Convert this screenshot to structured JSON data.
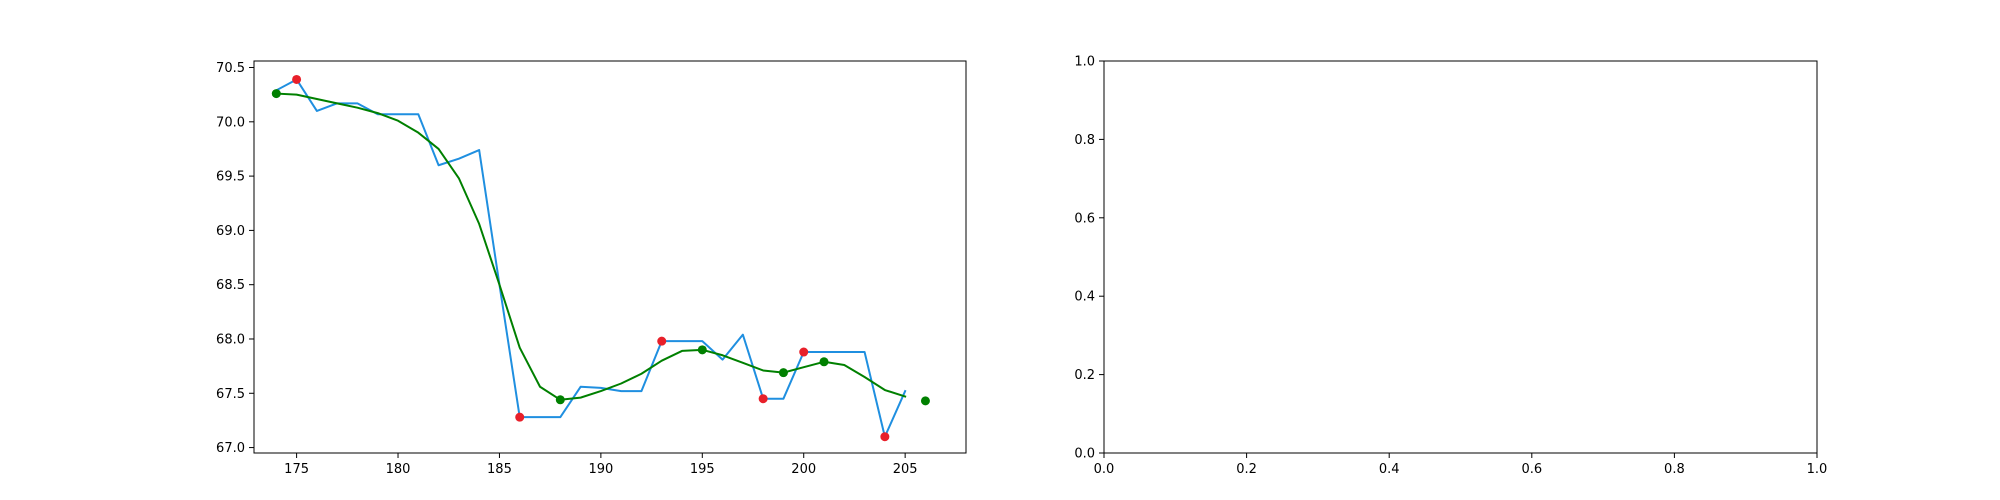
{
  "chart_data": [
    {
      "type": "line",
      "title": "",
      "xlabel": "",
      "ylabel": "",
      "xlim": [
        172.9,
        208.0
      ],
      "ylim": [
        66.95,
        70.56
      ],
      "grid": false,
      "legend": "none",
      "xticks": [
        175,
        180,
        185,
        190,
        195,
        200,
        205
      ],
      "yticks": [
        67.0,
        67.5,
        68.0,
        68.5,
        69.0,
        69.5,
        70.0,
        70.5
      ],
      "series": [
        {
          "kind": "line",
          "color": "#1f8fe0",
          "x": [
            174,
            175,
            176,
            177,
            178,
            179,
            180,
            181,
            182,
            183,
            184,
            185,
            186,
            187,
            188,
            189,
            190,
            191,
            192,
            193,
            194,
            195,
            196,
            197,
            198,
            199,
            200,
            201,
            202,
            203,
            204,
            205
          ],
          "y": [
            70.29,
            70.39,
            70.1,
            70.17,
            70.17,
            70.07,
            70.07,
            70.07,
            69.6,
            69.66,
            69.74,
            68.5,
            67.28,
            67.28,
            67.28,
            67.56,
            67.55,
            67.52,
            67.52,
            67.98,
            67.98,
            67.98,
            67.81,
            68.04,
            67.45,
            67.45,
            67.88,
            67.88,
            67.88,
            67.88,
            67.1,
            67.52
          ]
        },
        {
          "kind": "line",
          "color": "#008000",
          "x": [
            174,
            175,
            176,
            177,
            178,
            179,
            180,
            181,
            182,
            183,
            184,
            185,
            186,
            187,
            188,
            189,
            190,
            191,
            192,
            193,
            194,
            195,
            196,
            197,
            198,
            199,
            200,
            201,
            202,
            203,
            204,
            205
          ],
          "y": [
            70.26,
            70.25,
            70.21,
            70.17,
            70.13,
            70.08,
            70.01,
            69.9,
            69.75,
            69.48,
            69.06,
            68.5,
            67.92,
            67.56,
            67.44,
            67.46,
            67.52,
            67.59,
            67.68,
            67.8,
            67.89,
            67.9,
            67.85,
            67.78,
            67.71,
            67.69,
            67.74,
            67.79,
            67.76,
            67.65,
            67.53,
            67.47
          ]
        },
        {
          "kind": "scatter",
          "color": "#e8202a",
          "x": [
            175,
            186,
            193,
            198,
            200,
            204
          ],
          "y": [
            70.39,
            67.28,
            67.98,
            67.45,
            67.88,
            67.1
          ]
        },
        {
          "kind": "scatter",
          "color": "#008000",
          "x": [
            174,
            188,
            195,
            199,
            201,
            206
          ],
          "y": [
            70.26,
            67.44,
            67.9,
            67.69,
            67.79,
            67.43
          ]
        }
      ]
    },
    {
      "type": "line",
      "title": "",
      "xlabel": "",
      "ylabel": "",
      "xlim": [
        0.0,
        1.0
      ],
      "ylim": [
        0.0,
        1.0
      ],
      "grid": false,
      "legend": "none",
      "xticks": [
        0.0,
        0.2,
        0.4,
        0.6,
        0.8,
        1.0
      ],
      "yticks": [
        0.0,
        0.2,
        0.4,
        0.6,
        0.8,
        1.0
      ],
      "series": []
    }
  ]
}
